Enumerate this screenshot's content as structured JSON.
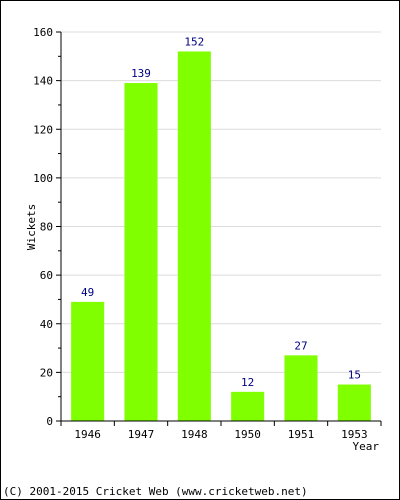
{
  "chart_data": {
    "type": "bar",
    "categories": [
      "1946",
      "1947",
      "1948",
      "1950",
      "1951",
      "1953"
    ],
    "values": [
      49,
      139,
      152,
      12,
      27,
      15
    ],
    "title": "",
    "xlabel": "Year",
    "ylabel": "Wickets",
    "ylim": [
      0,
      160
    ],
    "yticks": [
      "0",
      "20",
      "40",
      "60",
      "80",
      "100",
      "120",
      "140",
      "160"
    ],
    "grid": "horizontal",
    "bar_color": "#7fff00",
    "label_color": "#000080"
  },
  "footer": {
    "copyright": "(C) 2001-2015 Cricket Web (www.cricketweb.net)"
  }
}
